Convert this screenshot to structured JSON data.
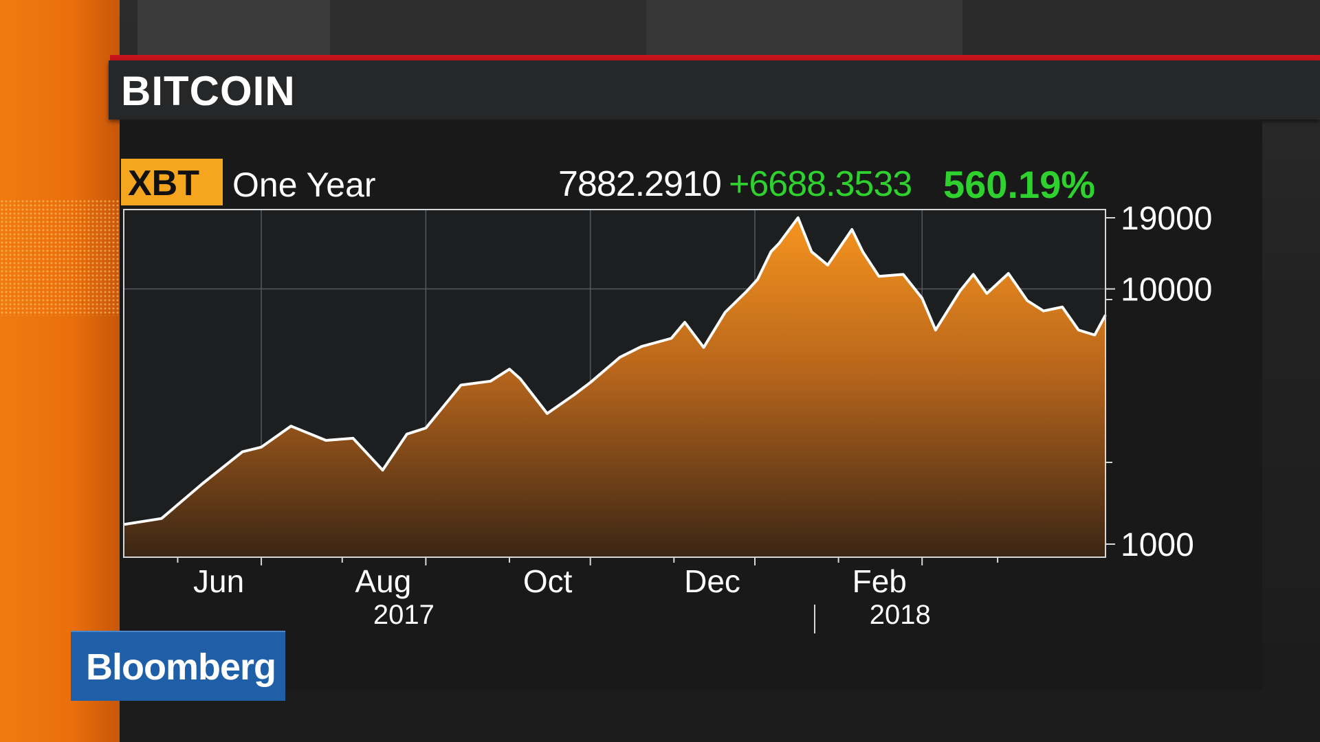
{
  "header": {
    "title": "BITCOIN"
  },
  "quote": {
    "ticker": "XBT",
    "period": "One Year",
    "last": "7882.2910",
    "change": "+6688.3533",
    "change_pct": "560.19%"
  },
  "colors": {
    "accent": "#f5a51e",
    "positive": "#2fd12e",
    "header_rule": "#c8141a",
    "brand": "#1f5fa8"
  },
  "brand": {
    "name": "Bloomberg"
  },
  "chart_data": {
    "type": "area",
    "title": "",
    "xlabel": "",
    "ylabel": "",
    "yscale": "log",
    "ylim": [
      1000,
      19000
    ],
    "y_ticks": [
      1000,
      10000,
      19000
    ],
    "y_tick_labels": [
      "1000",
      "10000",
      "19000"
    ],
    "x_range": [
      "2017-04-11",
      "2018-04-10"
    ],
    "x_tick_labels": [
      {
        "label": "Jun",
        "date": "2017-06-01"
      },
      {
        "label": "Aug",
        "date": "2017-08-01"
      },
      {
        "label": "Oct",
        "date": "2017-10-01"
      },
      {
        "label": "Dec",
        "date": "2017-12-01"
      },
      {
        "label": "Feb",
        "date": "2018-02-01"
      }
    ],
    "year_labels": [
      {
        "label": "2017",
        "date": "2017-08-01"
      },
      {
        "label": "2018",
        "date": "2018-02-01"
      }
    ],
    "grid": true,
    "series": [
      {
        "points": [
          [
            "2017-04-11",
            1194
          ],
          [
            "2017-04-25",
            1260
          ],
          [
            "2017-05-10",
            1720
          ],
          [
            "2017-05-25",
            2300
          ],
          [
            "2017-06-01",
            2400
          ],
          [
            "2017-06-12",
            2900
          ],
          [
            "2017-06-25",
            2550
          ],
          [
            "2017-07-05",
            2600
          ],
          [
            "2017-07-16",
            1950
          ],
          [
            "2017-07-25",
            2700
          ],
          [
            "2017-08-01",
            2850
          ],
          [
            "2017-08-14",
            4200
          ],
          [
            "2017-08-25",
            4350
          ],
          [
            "2017-09-01",
            4850
          ],
          [
            "2017-09-05",
            4450
          ],
          [
            "2017-09-15",
            3250
          ],
          [
            "2017-09-25",
            3850
          ],
          [
            "2017-10-01",
            4300
          ],
          [
            "2017-10-12",
            5400
          ],
          [
            "2017-10-20",
            5950
          ],
          [
            "2017-10-31",
            6400
          ],
          [
            "2017-11-05",
            7400
          ],
          [
            "2017-11-12",
            5900
          ],
          [
            "2017-11-20",
            8100
          ],
          [
            "2017-11-28",
            9800
          ],
          [
            "2017-12-02",
            10900
          ],
          [
            "2017-12-07",
            14000
          ],
          [
            "2017-12-10",
            15100
          ],
          [
            "2017-12-17",
            19000
          ],
          [
            "2017-12-22",
            14000
          ],
          [
            "2017-12-28",
            12400
          ],
          [
            "2018-01-06",
            17100
          ],
          [
            "2018-01-10",
            14000
          ],
          [
            "2018-01-16",
            11200
          ],
          [
            "2018-01-25",
            11400
          ],
          [
            "2018-02-01",
            9200
          ],
          [
            "2018-02-06",
            6900
          ],
          [
            "2018-02-15",
            9800
          ],
          [
            "2018-02-20",
            11400
          ],
          [
            "2018-02-25",
            9600
          ],
          [
            "2018-03-05",
            11500
          ],
          [
            "2018-03-12",
            9000
          ],
          [
            "2018-03-18",
            8200
          ],
          [
            "2018-03-25",
            8500
          ],
          [
            "2018-03-31",
            6900
          ],
          [
            "2018-04-06",
            6600
          ],
          [
            "2018-04-10",
            7900
          ]
        ]
      }
    ]
  }
}
